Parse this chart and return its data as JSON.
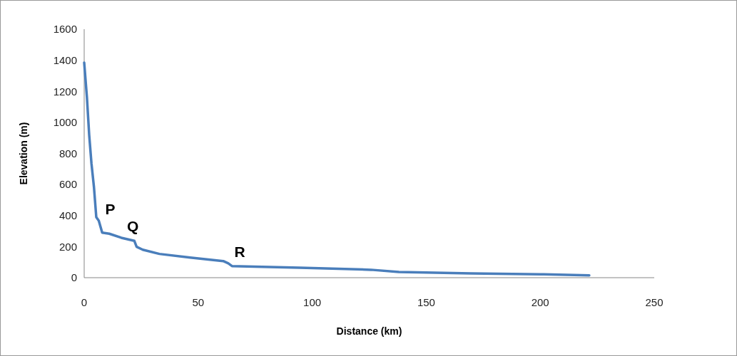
{
  "chart_data": {
    "type": "line",
    "xlabel": "Distance (km)",
    "ylabel": "Elevation (m)",
    "xlim": [
      0,
      250
    ],
    "xticks": [
      0,
      50,
      100,
      150,
      200,
      250
    ],
    "ylim": [
      0,
      1600
    ],
    "yticks": [
      0,
      200,
      400,
      600,
      800,
      1000,
      1200,
      1400,
      1600
    ],
    "grid": false,
    "series": [
      {
        "color": "#4a7ebb",
        "x": [
          0,
          1.2,
          2.2,
          3.2,
          4.3,
          5.3,
          6.4,
          7.9,
          11,
          16.3,
          22,
          23,
          25.7,
          33,
          46.5,
          61,
          63.2,
          64.8,
          94.5,
          125.8,
          138,
          169.6,
          200,
          221.5
        ],
        "values": [
          1385,
          1162,
          917,
          734,
          581,
          390,
          367,
          290,
          283,
          257,
          237,
          199,
          180,
          153,
          130,
          107,
          92,
          75,
          64,
          51,
          37,
          28,
          22,
          15
        ]
      }
    ],
    "annotations": [
      {
        "text": "P",
        "x": 6.4,
        "y": 367
      },
      {
        "text": "Q",
        "x": 16.3,
        "y": 257
      },
      {
        "text": "R",
        "x": 63.2,
        "y": 92
      }
    ]
  }
}
